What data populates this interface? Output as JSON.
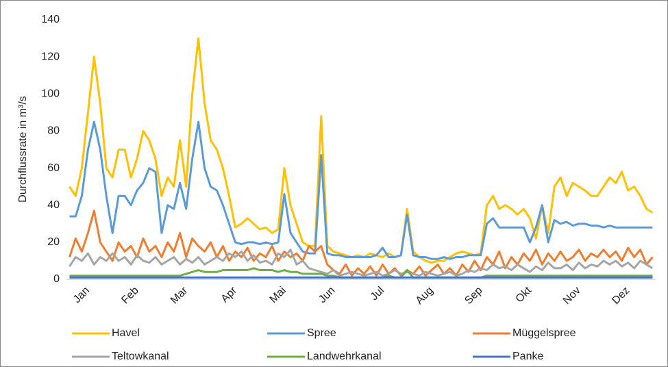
{
  "chart_data": {
    "type": "line",
    "y_label": "Durchflussrate in m³/s",
    "categories": [
      null,
      null,
      null,
      "Jan",
      null,
      null,
      null,
      null,
      null,
      null,
      null,
      "Feb",
      null,
      null,
      null,
      null,
      null,
      null,
      null,
      "Mar",
      null,
      null,
      null,
      null,
      null,
      null,
      null,
      "Apr",
      null,
      null,
      null,
      null,
      null,
      null,
      null,
      "Mai",
      null,
      null,
      null,
      null,
      null,
      null,
      null,
      "Jun",
      null,
      null,
      null,
      null,
      null,
      null,
      null,
      "Jul",
      null,
      null,
      null,
      null,
      null,
      null,
      null,
      "Aug",
      null,
      null,
      null,
      null,
      null,
      null,
      null,
      "Sep",
      null,
      null,
      null,
      null,
      null,
      null,
      null,
      "Okt",
      null,
      null,
      null,
      null,
      null,
      null,
      null,
      "Nov",
      null,
      null,
      null,
      null,
      null,
      null,
      null,
      "Dez",
      null,
      null,
      null,
      null
    ],
    "series": [
      {
        "name": "Havel",
        "color": "#FFC000",
        "values": [
          50,
          45,
          60,
          90,
          120,
          95,
          60,
          55,
          70,
          70,
          55,
          65,
          80,
          75,
          65,
          45,
          55,
          50,
          75,
          50,
          100,
          130,
          95,
          75,
          70,
          60,
          45,
          28,
          30,
          33,
          30,
          27,
          28,
          25,
          27,
          60,
          40,
          30,
          20,
          18,
          18,
          88,
          18,
          15,
          14,
          13,
          12,
          13,
          12,
          14,
          13,
          12,
          14,
          12,
          13,
          38,
          15,
          12,
          10,
          9,
          10,
          10,
          12,
          14,
          15,
          14,
          13,
          14,
          40,
          45,
          38,
          40,
          38,
          35,
          38,
          33,
          22,
          40,
          25,
          50,
          55,
          45,
          52,
          50,
          48,
          45,
          45,
          50,
          55,
          52,
          58,
          48,
          50,
          45,
          38,
          36
        ]
      },
      {
        "name": "Spree",
        "color": "#5B9BD5",
        "values": [
          34,
          34,
          45,
          70,
          85,
          70,
          45,
          25,
          45,
          45,
          40,
          48,
          52,
          60,
          58,
          25,
          40,
          38,
          52,
          38,
          65,
          85,
          60,
          50,
          48,
          40,
          30,
          20,
          19,
          20,
          20,
          19,
          20,
          19,
          20,
          46,
          25,
          20,
          15,
          14,
          14,
          67,
          14,
          13,
          13,
          12,
          12,
          12,
          12,
          12,
          13,
          17,
          12,
          12,
          13,
          35,
          13,
          12,
          12,
          11,
          11,
          12,
          11,
          12,
          12,
          13,
          13,
          13,
          30,
          33,
          28,
          28,
          28,
          28,
          28,
          20,
          28,
          40,
          20,
          32,
          30,
          31,
          29,
          30,
          30,
          29,
          29,
          28,
          29,
          28,
          28,
          28,
          28,
          28,
          28,
          28
        ]
      },
      {
        "name": "Müggelspree",
        "color": "#ED7D31",
        "values": [
          12,
          22,
          15,
          25,
          37,
          20,
          15,
          10,
          20,
          15,
          18,
          12,
          22,
          15,
          18,
          12,
          20,
          15,
          25,
          12,
          22,
          18,
          15,
          20,
          12,
          18,
          10,
          15,
          12,
          17,
          10,
          14,
          12,
          18,
          10,
          15,
          12,
          14,
          10,
          18,
          15,
          18,
          8,
          5,
          3,
          8,
          2,
          6,
          3,
          7,
          2,
          8,
          3,
          6,
          2,
          5,
          3,
          7,
          2,
          5,
          8,
          3,
          6,
          2,
          8,
          4,
          10,
          5,
          12,
          8,
          15,
          6,
          12,
          8,
          14,
          10,
          16,
          8,
          14,
          10,
          15,
          10,
          12,
          16,
          10,
          14,
          12,
          16,
          12,
          15,
          10,
          17,
          12,
          16,
          8,
          12
        ]
      },
      {
        "name": "Teltowkanal",
        "color": "#A5A5A5",
        "values": [
          7,
          12,
          10,
          14,
          8,
          12,
          10,
          14,
          10,
          12,
          8,
          13,
          10,
          9,
          12,
          8,
          10,
          12,
          8,
          11,
          9,
          12,
          8,
          10,
          12,
          10,
          14,
          12,
          15,
          10,
          13,
          9,
          10,
          8,
          14,
          12,
          16,
          8,
          10,
          6,
          5,
          4,
          3,
          5,
          2,
          3,
          4,
          3,
          2,
          3,
          4,
          2,
          3,
          5,
          3,
          4,
          3,
          2,
          4,
          3,
          2,
          3,
          4,
          2,
          3,
          5,
          4,
          6,
          5,
          8,
          6,
          7,
          5,
          8,
          6,
          4,
          7,
          5,
          9,
          6,
          6,
          8,
          5,
          9,
          6,
          8,
          7,
          10,
          8,
          10,
          7,
          9,
          6,
          10,
          8,
          6
        ]
      },
      {
        "name": "Landwehrkanal",
        "color": "#70AD47",
        "values": [
          2,
          2,
          2,
          2,
          2,
          2,
          2,
          2,
          2,
          2,
          2,
          2,
          2,
          2,
          2,
          2,
          2,
          2,
          2,
          3,
          4,
          5,
          4,
          4,
          4,
          5,
          5,
          5,
          5,
          5,
          6,
          5,
          5,
          5,
          4,
          5,
          4,
          4,
          3,
          3,
          3,
          3,
          2,
          2,
          1,
          1,
          1,
          1,
          1,
          1,
          1,
          1,
          2,
          1,
          1,
          5,
          1,
          1,
          1,
          1,
          1,
          1,
          1,
          1,
          1,
          1,
          1,
          1,
          2,
          2,
          2,
          2,
          2,
          2,
          2,
          2,
          2,
          2,
          2,
          2,
          2,
          2,
          2,
          2,
          2,
          2,
          2,
          2,
          2,
          2,
          2,
          2,
          2,
          2,
          2,
          2
        ]
      },
      {
        "name": "Panke",
        "color": "#4472C4",
        "values": [
          1,
          1,
          1,
          1,
          1,
          1,
          1,
          1,
          1,
          1,
          1,
          1,
          1,
          1,
          1,
          1,
          1,
          1,
          1,
          1,
          1,
          1,
          1,
          1,
          1,
          1,
          1,
          1,
          1,
          1,
          1,
          1,
          1,
          1,
          1,
          1,
          1,
          1,
          1,
          1,
          1,
          1,
          1,
          1,
          1,
          1,
          1,
          1,
          1,
          1,
          1,
          1,
          1,
          1,
          1,
          1,
          1,
          1,
          1,
          1,
          1,
          1,
          1,
          1,
          1,
          1,
          1,
          1,
          1,
          1,
          1,
          1,
          1,
          1,
          1,
          1,
          1,
          1,
          1,
          1,
          1,
          1,
          1,
          1,
          1,
          1,
          1,
          1,
          1,
          1,
          1,
          1,
          1,
          1,
          1,
          1
        ]
      }
    ],
    "ylim": [
      0,
      140
    ],
    "yticks": [
      0,
      20,
      40,
      60,
      80,
      100,
      120,
      140
    ],
    "grid": false
  }
}
